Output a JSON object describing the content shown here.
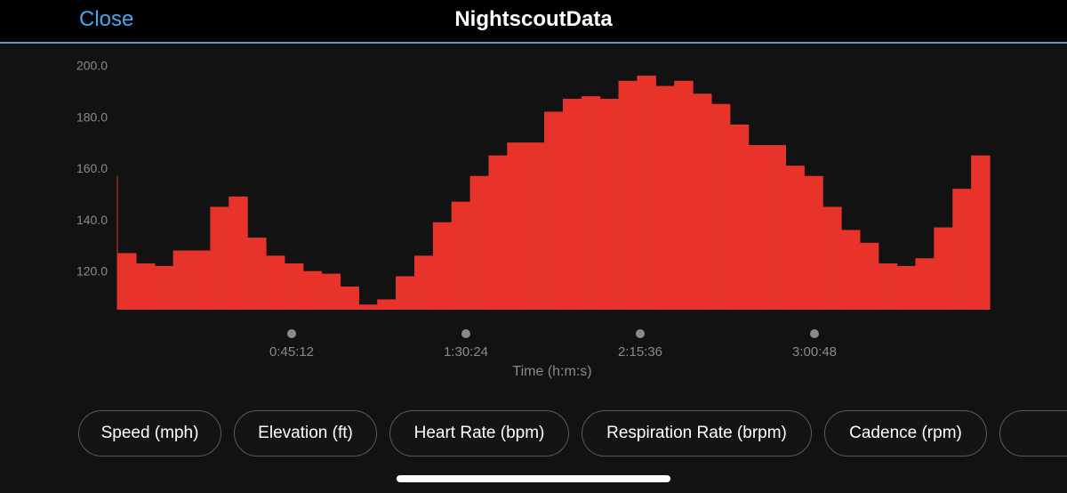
{
  "header": {
    "close_label": "Close",
    "title": "NightscoutData"
  },
  "chart_data": {
    "type": "area",
    "xlabel": "Time (h:m:s)",
    "ylabel": "",
    "x_ticks": [
      "0:45:12",
      "1:30:24",
      "2:15:36",
      "3:00:48"
    ],
    "y_ticks": [
      "120.0",
      "140.0",
      "160.0",
      "180.0",
      "200.0"
    ],
    "ylim": [
      105,
      205
    ],
    "step": true,
    "color": "#e8332a",
    "values": [
      127,
      123,
      122,
      128,
      128,
      145,
      149,
      133,
      126,
      123,
      120,
      119,
      114,
      107,
      109,
      118,
      126,
      139,
      147,
      157,
      165,
      170,
      170,
      182,
      187,
      188,
      187,
      194,
      196,
      192,
      194,
      189,
      185,
      177,
      169,
      169,
      161,
      157,
      145,
      136,
      131,
      123,
      122,
      125,
      137,
      152,
      165
    ]
  },
  "metric_buttons": [
    {
      "label": "Speed (mph)"
    },
    {
      "label": "Elevation (ft)"
    },
    {
      "label": "Heart Rate (bpm)"
    },
    {
      "label": "Respiration Rate (brpm)"
    },
    {
      "label": "Cadence (rpm)"
    },
    {
      "label": ""
    }
  ]
}
